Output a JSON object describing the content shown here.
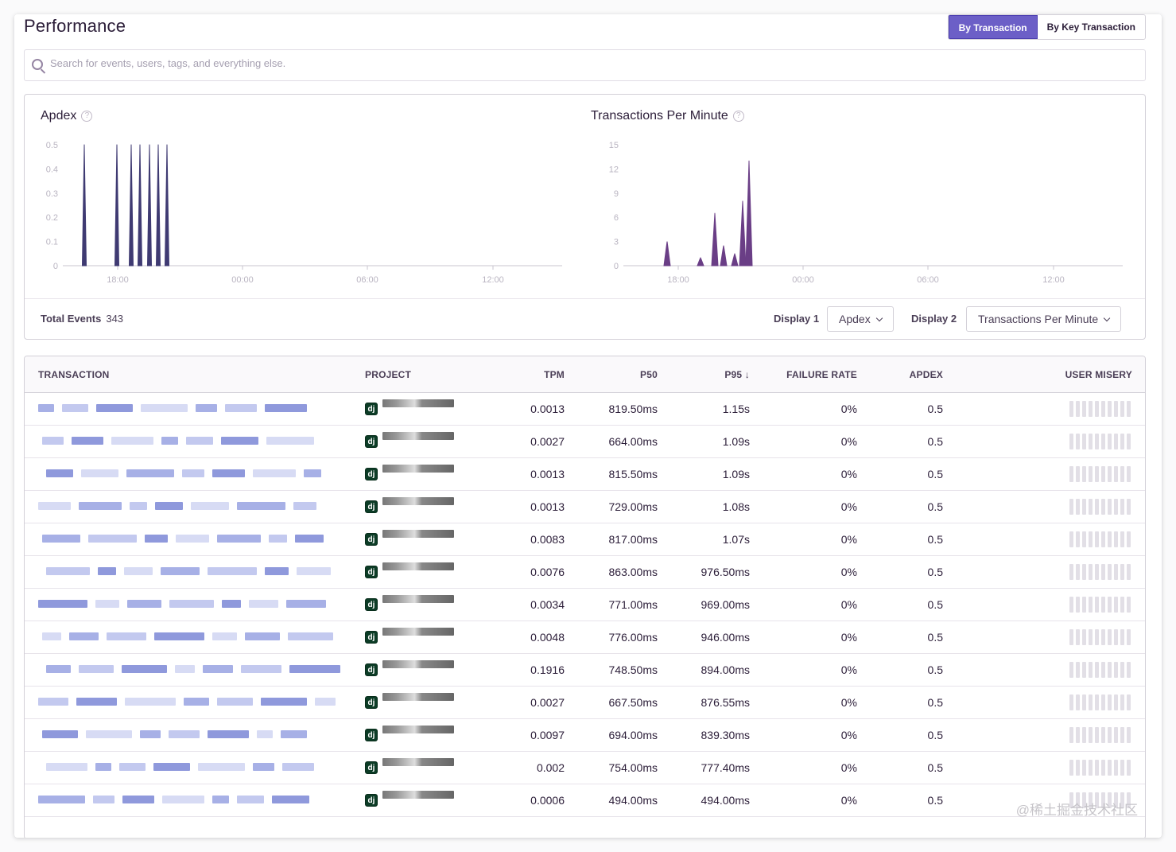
{
  "header": {
    "title": "Performance",
    "tab_active": "By Transaction",
    "tab_other": "By Key Transaction"
  },
  "search": {
    "placeholder": "Search for events, users, tags, and everything else."
  },
  "charts": {
    "apdex_title": "Apdex",
    "tpm_title": "Transactions Per Minute",
    "help_glyph": "?",
    "apdex_yticks": [
      "0.5",
      "0.4",
      "0.3",
      "0.2",
      "0.1",
      "0"
    ],
    "tpm_yticks": [
      "15",
      "12",
      "9",
      "6",
      "3",
      "0"
    ],
    "xticks": [
      "18:00",
      "00:00",
      "06:00",
      "12:00"
    ],
    "apdex_color": "#3f3a72",
    "tpm_color": "#6a3e86"
  },
  "chart_data": [
    {
      "type": "area",
      "title": "Apdex",
      "ylim": [
        0,
        0.5
      ],
      "x_ticks": [
        "18:00",
        "00:00",
        "06:00",
        "12:00"
      ],
      "spikes_x_fraction_of_axis": [
        0.0,
        0.0
      ],
      "series": [
        {
          "values": [
            0.5,
            0.5,
            0.5,
            0.5,
            0.5,
            0.5,
            0.5
          ]
        }
      ]
    },
    {
      "type": "area",
      "title": "Transactions Per Minute",
      "ylim": [
        0,
        15
      ],
      "x_ticks": [
        "18:00",
        "00:00",
        "06:00",
        "12:00"
      ],
      "series": [
        {
          "values": [
            3,
            1,
            6.5,
            2.5,
            1.5,
            8,
            13
          ]
        }
      ]
    }
  ],
  "footer": {
    "total_label": "Total Events",
    "total_value": "343",
    "display1_label": "Display 1",
    "display1_value": "Apdex",
    "display2_label": "Display 2",
    "display2_value": "Transactions Per Minute"
  },
  "table": {
    "headers": {
      "transaction": "TRANSACTION",
      "project": "PROJECT",
      "tpm": "TPM",
      "p50": "P50",
      "p95": "P95 ↓",
      "failure": "FAILURE RATE",
      "apdex": "APDEX",
      "misery": "USER MISERY"
    },
    "project_badge": "dj",
    "rows": [
      {
        "tpm": "0.0013",
        "p50": "819.50ms",
        "p95": "1.15s",
        "failure": "0%",
        "apdex": "0.5"
      },
      {
        "tpm": "0.0027",
        "p50": "664.00ms",
        "p95": "1.09s",
        "failure": "0%",
        "apdex": "0.5"
      },
      {
        "tpm": "0.0013",
        "p50": "815.50ms",
        "p95": "1.09s",
        "failure": "0%",
        "apdex": "0.5"
      },
      {
        "tpm": "0.0013",
        "p50": "729.00ms",
        "p95": "1.08s",
        "failure": "0%",
        "apdex": "0.5"
      },
      {
        "tpm": "0.0083",
        "p50": "817.00ms",
        "p95": "1.07s",
        "failure": "0%",
        "apdex": "0.5"
      },
      {
        "tpm": "0.0076",
        "p50": "863.00ms",
        "p95": "976.50ms",
        "failure": "0%",
        "apdex": "0.5"
      },
      {
        "tpm": "0.0034",
        "p50": "771.00ms",
        "p95": "969.00ms",
        "failure": "0%",
        "apdex": "0.5"
      },
      {
        "tpm": "0.0048",
        "p50": "776.00ms",
        "p95": "946.00ms",
        "failure": "0%",
        "apdex": "0.5"
      },
      {
        "tpm": "0.1916",
        "p50": "748.50ms",
        "p95": "894.00ms",
        "failure": "0%",
        "apdex": "0.5"
      },
      {
        "tpm": "0.0027",
        "p50": "667.50ms",
        "p95": "876.55ms",
        "failure": "0%",
        "apdex": "0.5"
      },
      {
        "tpm": "0.0097",
        "p50": "694.00ms",
        "p95": "839.30ms",
        "failure": "0%",
        "apdex": "0.5"
      },
      {
        "tpm": "0.002",
        "p50": "754.00ms",
        "p95": "777.40ms",
        "failure": "0%",
        "apdex": "0.5"
      },
      {
        "tpm": "0.0006",
        "p50": "494.00ms",
        "p95": "494.00ms",
        "failure": "0%",
        "apdex": "0.5"
      }
    ]
  },
  "watermark": "@稀土掘金技术社区"
}
